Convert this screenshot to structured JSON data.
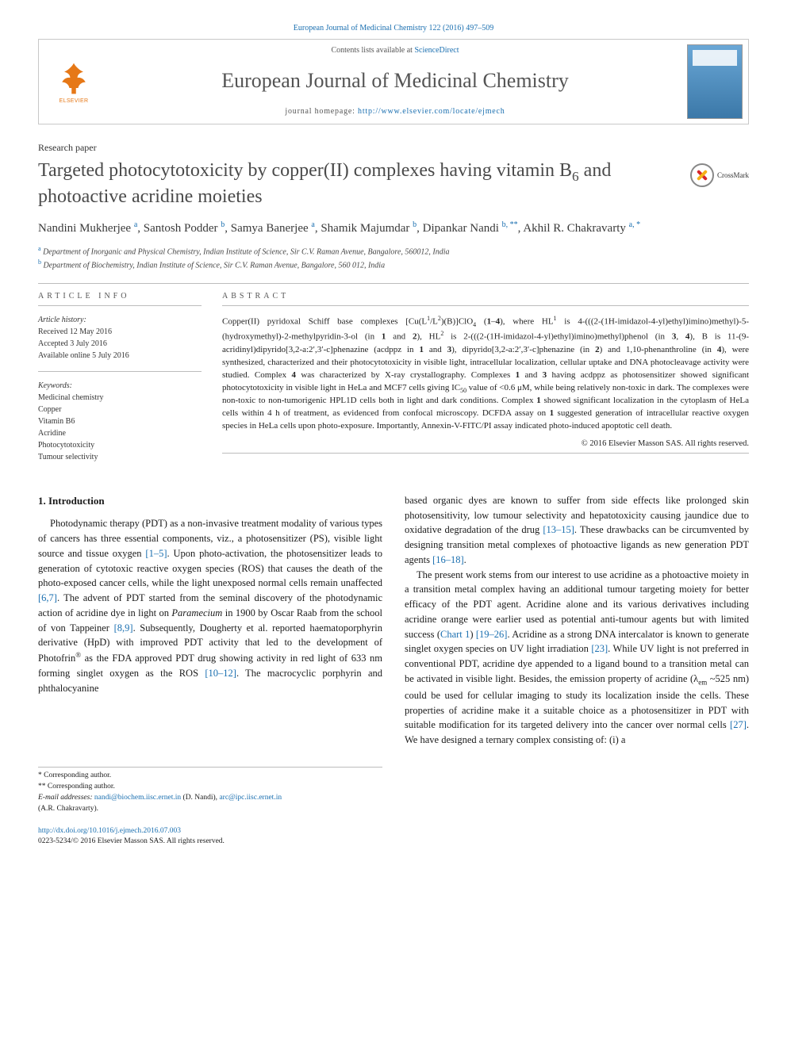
{
  "citation": "European Journal of Medicinal Chemistry 122 (2016) 497–509",
  "header": {
    "contents_prefix": "Contents lists available at ",
    "contents_link": "ScienceDirect",
    "journal": "European Journal of Medicinal Chemistry",
    "homepage_prefix": "journal homepage: ",
    "homepage_url": "http://www.elsevier.com/locate/ejmech",
    "publisher": "ELSEVIER"
  },
  "paper_type": "Research paper",
  "title_html": "Targeted photocytotoxicity by copper(II) complexes having vitamin B<sub>6</sub> and photoactive acridine moieties",
  "crossmark_label": "CrossMark",
  "authors_html": "Nandini Mukherjee <span class=\"sup\">a</span>, Santosh Podder <span class=\"sup\">b</span>, Samya Banerjee <span class=\"sup\">a</span>, Shamik Majumdar <span class=\"sup\">b</span>, Dipankar Nandi <span class=\"sup\">b, **</span>, Akhil R. Chakravarty <span class=\"sup\">a, *</span>",
  "affiliations": [
    {
      "sup": "a",
      "text": "Department of Inorganic and Physical Chemistry, Indian Institute of Science, Sir C.V. Raman Avenue, Bangalore, 560012, India"
    },
    {
      "sup": "b",
      "text": "Department of Biochemistry, Indian Institute of Science, Sir C.V. Raman Avenue, Bangalore, 560 012, India"
    }
  ],
  "article_info": {
    "label": "ARTICLE INFO",
    "history_label": "Article history:",
    "history": [
      "Received 12 May 2016",
      "Accepted 3 July 2016",
      "Available online 5 July 2016"
    ],
    "keywords_label": "Keywords:",
    "keywords": [
      "Medicinal chemistry",
      "Copper",
      "Vitamin B6",
      "Acridine",
      "Photocytotoxicity",
      "Tumour selectivity"
    ]
  },
  "abstract": {
    "label": "ABSTRACT",
    "text_html": "Copper(II) pyridoxal Schiff base complexes [Cu(L<sup>1</sup>/L<sup>2</sup>)(B)]ClO<sub>4</sub> (<b>1</b>–<b>4</b>), where HL<sup>1</sup> is 4-(((2-(1H-imidazol-4-yl)ethyl)imino)methyl)-5-(hydroxymethyl)-2-methylpyridin-3-ol (in <b>1</b> and <b>2</b>), HL<sup>2</sup> is 2-(((2-(1H-imidazol-4-yl)ethyl)imino)methyl)phenol (in <b>3</b>, <b>4</b>), B is 11-(9-acridinyl)dipyrido[3,2-a:2′,3′-c]phenazine (acdppz in <b>1</b> and <b>3</b>), dipyrido[3,2-a:2′,3′-c]phenazine (in <b>2</b>) and 1,10-phenanthroline (in <b>4</b>), were synthesized, characterized and their photocytotoxicity in visible light, intracellular localization, cellular uptake and DNA photocleavage activity were studied. Complex <b>4</b> was characterized by X-ray crystallography. Complexes <b>1</b> and <b>3</b> having acdppz as photosensitizer showed significant photocytotoxicity in visible light in HeLa and MCF7 cells giving IC<sub>50</sub> value of &lt;0.6 μM, while being relatively non-toxic in dark. The complexes were non-toxic to non-tumorigenic HPL1D cells both in light and dark conditions. Complex <b>1</b> showed significant localization in the cytoplasm of HeLa cells within 4 h of treatment, as evidenced from confocal microscopy. DCFDA assay on <b>1</b> suggested generation of intracellular reactive oxygen species in HeLa cells upon photo-exposure. Importantly, Annexin-V-FITC/PI assay indicated photo-induced apoptotic cell death.",
    "copyright": "© 2016 Elsevier Masson SAS. All rights reserved."
  },
  "body": {
    "heading": "1. Introduction",
    "p1_html": "Photodynamic therapy (PDT) as a non-invasive treatment modality of various types of cancers has three essential components, viz., a photosensitizer (PS), visible light source and tissue oxygen <span class=\"ref-link\">[1–5]</span>. Upon photo-activation, the photosensitizer leads to generation of cytotoxic reactive oxygen species (ROS) that causes the death of the photo-exposed cancer cells, while the light unexposed normal cells remain unaffected <span class=\"ref-link\">[6,7]</span>. The advent of PDT started from the seminal discovery of the photodynamic action of acridine dye in light on <i>Paramecium</i> in 1900 by Oscar Raab from the school of von Tappeiner <span class=\"ref-link\">[8,9]</span>. Subsequently, Dougherty et al. reported haematoporphyrin derivative (HpD) with improved PDT activity that led to the development of Photofrin<sup>®</sup> as the FDA approved PDT drug showing activity in red light of 633 nm forming singlet oxygen as the ROS <span class=\"ref-link\">[10–12]</span>. The macrocyclic porphyrin and phthalocyanine",
    "p2_html": "based organic dyes are known to suffer from side effects like prolonged skin photosensitivity, low tumour selectivity and hepatotoxicity causing jaundice due to oxidative degradation of the drug <span class=\"ref-link\">[13–15]</span>. These drawbacks can be circumvented by designing transition metal complexes of photoactive ligands as new generation PDT agents <span class=\"ref-link\">[16–18]</span>.",
    "p3_html": "The present work stems from our interest to use acridine as a photoactive moiety in a transition metal complex having an additional tumour targeting moiety for better efficacy of the PDT agent. Acridine alone and its various derivatives including acridine orange were earlier used as potential anti-tumour agents but with limited success (<span class=\"ref-link\">Chart 1</span>) <span class=\"ref-link\">[19–26]</span>. Acridine as a strong DNA intercalator is known to generate singlet oxygen species on UV light irradiation <span class=\"ref-link\">[23]</span>. While UV light is not preferred in conventional PDT, acridine dye appended to a ligand bound to a transition metal can be activated in visible light. Besides, the emission property of acridine (λ<sub>em</sub> ~525 nm) could be used for cellular imaging to study its localization inside the cells. These properties of acridine make it a suitable choice as a photosensitizer in PDT with suitable modification for its targeted delivery into the cancer over normal cells <span class=\"ref-link\">[27]</span>. We have designed a ternary complex consisting of: (i) a"
  },
  "footnotes": {
    "corr1": "* Corresponding author.",
    "corr2": "** Corresponding author.",
    "email_label": "E-mail addresses:",
    "email1": "nandi@biochem.iisc.ernet.in",
    "email1_who": "(D. Nandi),",
    "email2": "arc@ipc.iisc.ernet.in",
    "email2_who": "(A.R. Chakravarty)."
  },
  "footer": {
    "doi": "http://dx.doi.org/10.1016/j.ejmech.2016.07.003",
    "issn_cr": "0223-5234/© 2016 Elsevier Masson SAS. All rights reserved."
  },
  "colors": {
    "link": "#1a6fb0",
    "elsevier_orange": "#e67817",
    "rule": "#bcbcbc",
    "text": "#1a1a1a",
    "title_grey": "#4a4a4a"
  }
}
